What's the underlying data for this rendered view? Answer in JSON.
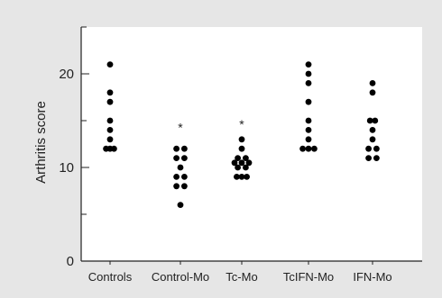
{
  "colors": {
    "background": "#e6e6e6",
    "plot_background": "#ffffff",
    "marker": "#000000",
    "axis": "#222222"
  },
  "chart_data": {
    "type": "scatter",
    "title": "",
    "xlabel": "",
    "ylabel": "Arthritis score",
    "ylim": [
      0,
      25
    ],
    "y_ticks": [
      0,
      10,
      20
    ],
    "y_tick_labels": [
      "0",
      "10",
      "20"
    ],
    "grid": false,
    "legend": "none",
    "categories": [
      "Controls",
      "Control-Mo",
      "Tc-Mo",
      "TcIFN-Mo",
      "IFN-Mo"
    ],
    "series": [
      {
        "category": "Controls",
        "points": [
          [
            0,
            21
          ],
          [
            0,
            18
          ],
          [
            0,
            17
          ],
          [
            0,
            15
          ],
          [
            0,
            14
          ],
          [
            0,
            13
          ],
          [
            0,
            12
          ],
          [
            -0.11,
            12
          ],
          [
            0.11,
            12
          ]
        ]
      },
      {
        "category": "Control-Mo",
        "points": [
          [
            -0.11,
            12
          ],
          [
            0.11,
            12
          ],
          [
            -0.11,
            11
          ],
          [
            0.11,
            11
          ],
          [
            0,
            10
          ],
          [
            -0.11,
            9
          ],
          [
            0.11,
            9
          ],
          [
            -0.11,
            8
          ],
          [
            0.11,
            8
          ],
          [
            0,
            6
          ]
        ]
      },
      {
        "category": "Tc-Mo",
        "points": [
          [
            0,
            13
          ],
          [
            0,
            12
          ],
          [
            -0.11,
            11
          ],
          [
            0.11,
            11
          ],
          [
            -0.2,
            10.5
          ],
          [
            0,
            10.5
          ],
          [
            0.2,
            10.5
          ],
          [
            -0.11,
            10
          ],
          [
            0.11,
            10
          ],
          [
            0,
            9
          ],
          [
            -0.14,
            9
          ],
          [
            0.14,
            9
          ]
        ]
      },
      {
        "category": "TcIFN-Mo",
        "points": [
          [
            0,
            21
          ],
          [
            0,
            20
          ],
          [
            0,
            19
          ],
          [
            0,
            17
          ],
          [
            0,
            15
          ],
          [
            0,
            14
          ],
          [
            0,
            13
          ],
          [
            -0.16,
            12
          ],
          [
            0,
            12
          ],
          [
            0.16,
            12
          ]
        ]
      },
      {
        "category": "IFN-Mo",
        "points": [
          [
            0,
            19
          ],
          [
            0,
            18
          ],
          [
            -0.07,
            15
          ],
          [
            0.07,
            15
          ],
          [
            0,
            14
          ],
          [
            0,
            13
          ],
          [
            -0.11,
            12
          ],
          [
            0.11,
            12
          ],
          [
            -0.11,
            11
          ],
          [
            0.11,
            11
          ]
        ]
      }
    ],
    "annotations": [
      {
        "category": "Control-Mo",
        "y": 14.2,
        "text": "*"
      },
      {
        "category": "Tc-Mo",
        "y": 14.5,
        "text": "*"
      }
    ]
  }
}
